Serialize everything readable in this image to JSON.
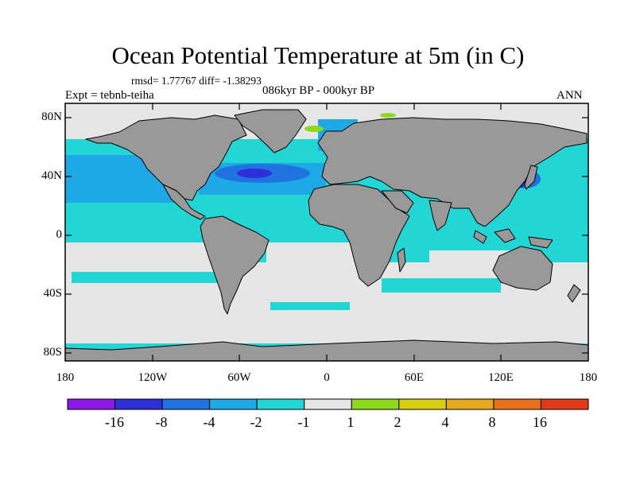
{
  "title": "Ocean Potential Temperature at 5m (in C)",
  "stats": "rmsd= 1.77767 diff= -1.38293",
  "experiment": "Expt = tebnb-teiha",
  "period": "086kyr BP - 000kyr BP",
  "season": "ANN",
  "lat_labels": [
    "80N",
    "40N",
    "0",
    "40S",
    "80S"
  ],
  "lon_labels": [
    "180",
    "120W",
    "60W",
    "0",
    "60E",
    "120E",
    "180"
  ],
  "colorbar": {
    "colors": [
      "#8b1ae6",
      "#2f2fd8",
      "#1f73e0",
      "#1ea8e6",
      "#23d6d6",
      "#e6e6e6",
      "#8ed81e",
      "#d6cf12",
      "#e6a81e",
      "#e6701e",
      "#e03a18"
    ],
    "labels": [
      "-16",
      "-8",
      "-4",
      "-2",
      "-1",
      "1",
      "2",
      "4",
      "8",
      "16"
    ]
  },
  "colors": {
    "land": "#999999",
    "coast": "#000000",
    "ocean_light_cyan": "#23d6d6",
    "ocean_blue": "#1ea8e6",
    "ocean_dark_blue": "#1f73e0",
    "ocean_deep": "#2f2fd8",
    "neutral": "#e6e6e6",
    "green": "#8ed81e"
  }
}
